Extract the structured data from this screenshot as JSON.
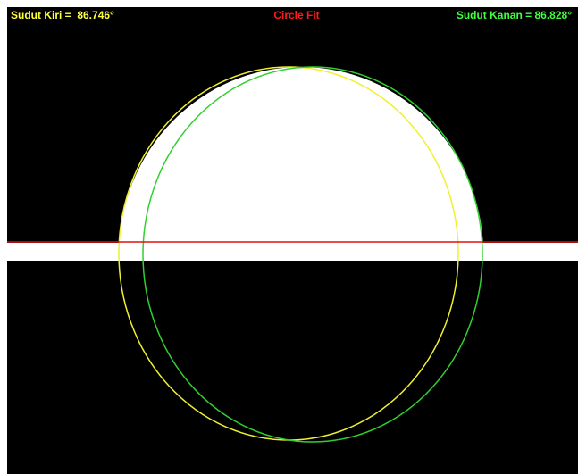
{
  "header": {
    "left": "Sudut Kiri =  86.746°",
    "title": "Circle Fit",
    "right": "Sudut Kanan = 86.828°"
  }
}
